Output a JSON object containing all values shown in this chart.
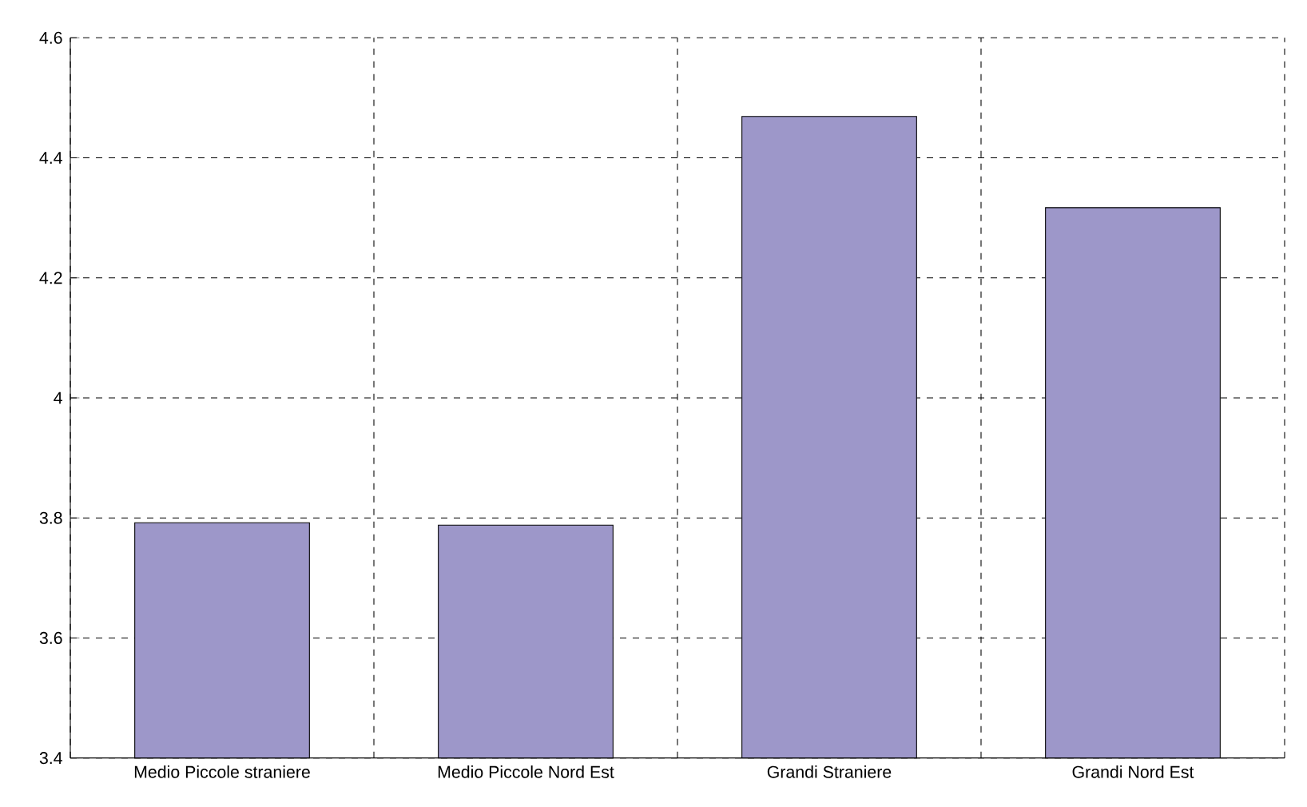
{
  "chart_data": {
    "type": "bar",
    "categories": [
      "Medio Piccole straniere",
      "Medio Piccole Nord Est",
      "Grandi Straniere",
      "Grandi Nord Est"
    ],
    "values": [
      3.792,
      3.788,
      4.469,
      4.317
    ],
    "color": "#9d97c9",
    "ylim": [
      3.4,
      4.6
    ],
    "yticks": [
      3.4,
      3.6,
      3.8,
      4,
      4.2,
      4.4,
      4.6
    ],
    "grid": true
  }
}
